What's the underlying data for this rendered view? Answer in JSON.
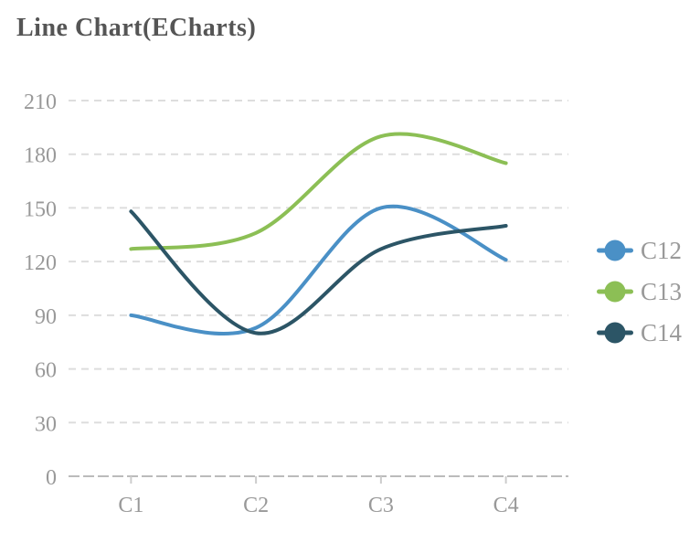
{
  "title": "Line Chart(ECharts)",
  "colors": {
    "title": "#555555",
    "axis_label": "#999999",
    "grid_line": "#dddddd",
    "axis_line": "#bbbbbb",
    "tick": "#cccccc",
    "background": "#ffffff"
  },
  "chart_data": {
    "type": "line",
    "title": "Line Chart(ECharts)",
    "categories": [
      "C1",
      "C2",
      "C3",
      "C4"
    ],
    "series": [
      {
        "name": "C12",
        "color": "#4a90c6",
        "values": [
          90,
          83,
          150,
          121
        ]
      },
      {
        "name": "C13",
        "color": "#8cbf55",
        "values": [
          127,
          136,
          190,
          175
        ]
      },
      {
        "name": "C14",
        "color": "#2c5566",
        "values": [
          148,
          80,
          127,
          140
        ]
      }
    ],
    "yticks": [
      0,
      30,
      60,
      90,
      120,
      150,
      180,
      210
    ],
    "ylim": [
      0,
      210
    ],
    "xlabel": "",
    "ylabel": "",
    "grid": "dashed horizontal",
    "smooth": true,
    "line_width": 4,
    "legend_position": "right",
    "legend_icon": "line-circle"
  }
}
